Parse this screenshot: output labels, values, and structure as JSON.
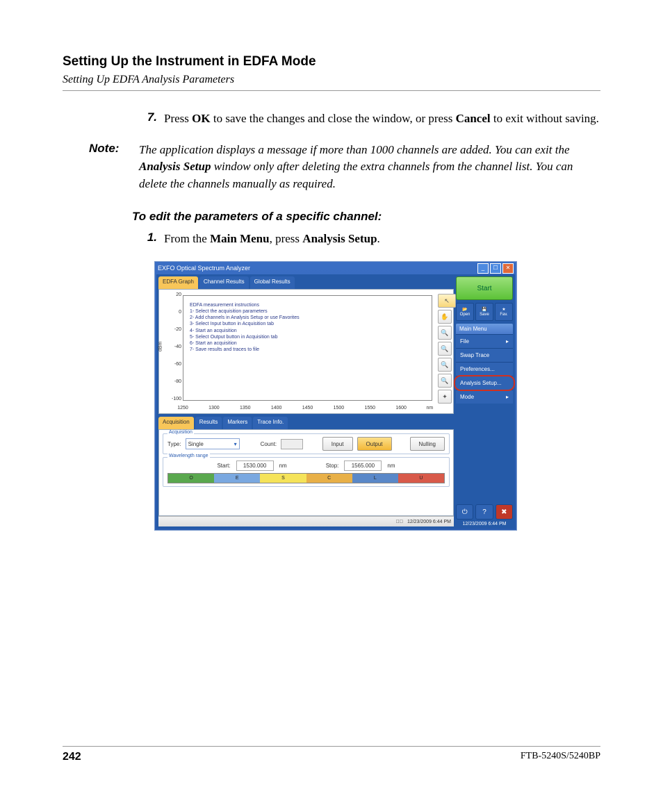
{
  "doc": {
    "section_title": "Setting Up the Instrument in EDFA Mode",
    "section_sub": "Setting Up EDFA Analysis Parameters",
    "step7_num": "7.",
    "step7_a": "Press ",
    "step7_b": "OK",
    "step7_c": " to save the changes and close the window, or press ",
    "step7_d": "Cancel",
    "step7_e": " to exit without saving.",
    "note_label": "Note:",
    "note_a": "The application displays a message if more than 1000 channels are added. You can exit the ",
    "note_b": "Analysis Setup",
    "note_c": " window only after deleting the extra channels from the channel list. You can delete the channels manually as required.",
    "proc_title": "To edit the parameters of a specific channel:",
    "step1_num": "1.",
    "step1_a": "From the ",
    "step1_b": "Main Menu",
    "step1_c": ", press ",
    "step1_d": "Analysis Setup",
    "step1_e": ".",
    "page_num": "242",
    "model": "FTB-5240S/5240BP"
  },
  "app": {
    "title": "EXFO Optical Spectrum Analyzer",
    "tabs_top": [
      "EDFA Graph",
      "Channel Results",
      "Global Results"
    ],
    "tabs_top_active": 0,
    "chart": {
      "ylabel": "dBm",
      "yticks": [
        {
          "v": "20",
          "p": 0
        },
        {
          "v": "0",
          "p": 16.6
        },
        {
          "v": "-20",
          "p": 33.3
        },
        {
          "v": "-40",
          "p": 50
        },
        {
          "v": "-60",
          "p": 66.6
        },
        {
          "v": "-80",
          "p": 83.3
        },
        {
          "v": "-100",
          "p": 100
        }
      ],
      "xticks": [
        {
          "v": "1250",
          "p": 0
        },
        {
          "v": "1300",
          "p": 12.5
        },
        {
          "v": "1350",
          "p": 25
        },
        {
          "v": "1400",
          "p": 37.5
        },
        {
          "v": "1450",
          "p": 50
        },
        {
          "v": "1500",
          "p": 62.5
        },
        {
          "v": "1550",
          "p": 75
        },
        {
          "v": "1600",
          "p": 87.5
        },
        {
          "v": "nm",
          "p": 99
        }
      ],
      "instr_title": "EDFA measurement instructions",
      "instr_lines": [
        "1- Select the acquisition parameters",
        "2- Add channels in Analysis Setup or use Favorites",
        "3- Select Input button in Acquisition tab",
        "4- Start an acquisition",
        "5- Select Output button in Acquisition tab",
        "6- Start an acquisition",
        "7- Save results and traces to file"
      ]
    },
    "tools": [
      "↖",
      "✋",
      "🔍",
      "🔍",
      "🔍",
      "🔍",
      "✦"
    ],
    "tabs_low": [
      "Acquisition",
      "Results",
      "Markers",
      "Trace Info."
    ],
    "tabs_low_active": 0,
    "acq": {
      "group1": "Acquisition",
      "type_lbl": "Type:",
      "type_val": "Single",
      "count_lbl": "Count:",
      "count_val": "",
      "input_btn": "Input",
      "output_btn": "Output",
      "nulling_btn": "Nulling",
      "group2": "Wavelength range",
      "start_lbl": "Start:",
      "start_val": "1530.000",
      "stop_lbl": "Stop:",
      "stop_val": "1565.000",
      "unit": "nm",
      "bands": [
        {
          "l": "O",
          "c": "#5aa84e"
        },
        {
          "l": "E",
          "c": "#7aa8e0"
        },
        {
          "l": "S",
          "c": "#f5e35a"
        },
        {
          "l": "C",
          "c": "#e8b048"
        },
        {
          "l": "L",
          "c": "#5a88c8"
        },
        {
          "l": "U",
          "c": "#d85a4a"
        }
      ]
    },
    "status_time": "12/23/2009 6:44 PM",
    "side": {
      "start": "Start",
      "icons": [
        {
          "l": "Open",
          "g": "📂"
        },
        {
          "l": "Save",
          "g": "💾"
        },
        {
          "l": "Fav.",
          "g": "★"
        }
      ],
      "menu_hdr": "Main Menu",
      "menu": [
        {
          "l": "File",
          "arrow": true
        },
        {
          "l": "Swap Trace",
          "arrow": false
        },
        {
          "l": "Preferences...",
          "arrow": false
        },
        {
          "l": "Analysis Setup...",
          "arrow": false,
          "hl": true
        },
        {
          "l": "Mode",
          "arrow": true
        }
      ],
      "bottom": [
        "⏻",
        "?",
        "✖"
      ]
    }
  }
}
